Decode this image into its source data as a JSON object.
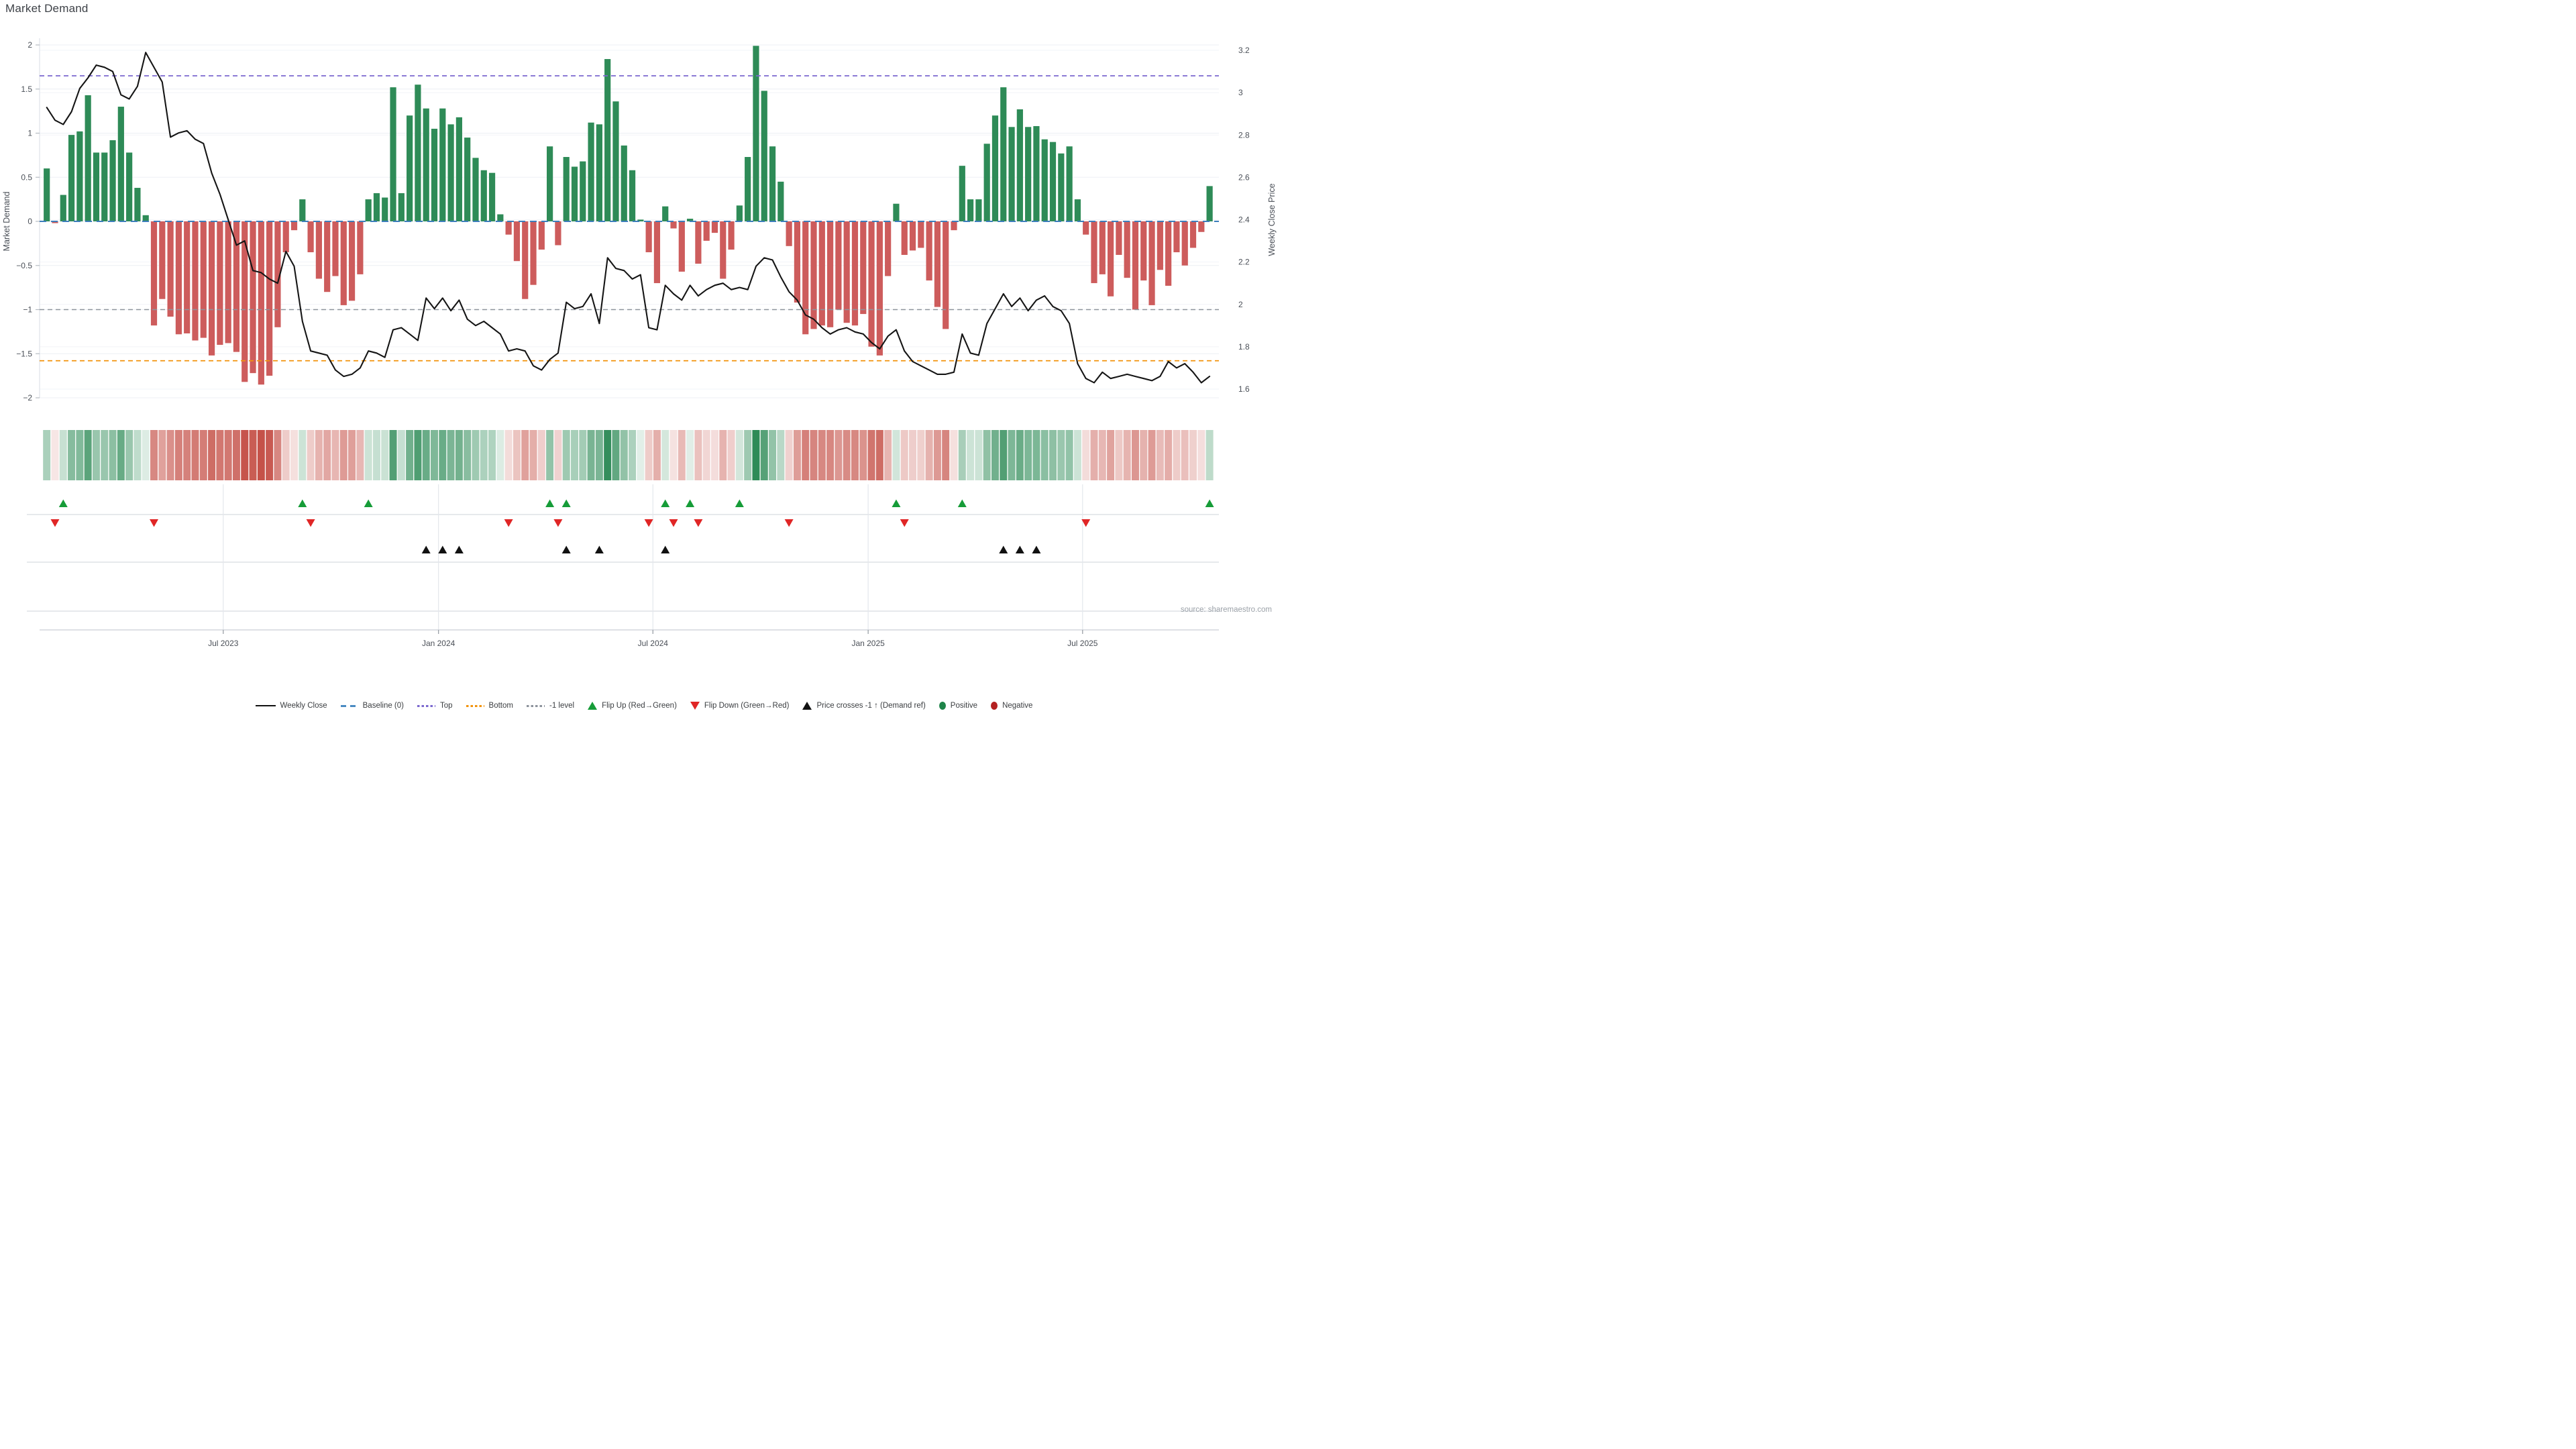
{
  "title": "Market Demand",
  "source": "source: sharemaestro.com",
  "axes": {
    "left": {
      "title": "Market Demand",
      "ticks": [
        2,
        1.5,
        1,
        0.5,
        0,
        -0.5,
        -1,
        -1.5,
        -2
      ],
      "range": [
        -2,
        2
      ]
    },
    "right": {
      "title": "Weekly Close Price",
      "ticks": [
        3.2,
        3,
        2.8,
        2.6,
        2.4,
        2.2,
        2,
        1.8,
        1.6
      ],
      "range": [
        1.6,
        3.2
      ]
    },
    "x": {
      "tick_labels": [
        "Jul 2023",
        "Jan 2024",
        "Jul 2024",
        "Jan 2025",
        "Jul 2025"
      ],
      "tick_weeks": [
        21.4,
        47.5,
        73.5,
        99.6,
        125.6
      ]
    }
  },
  "chart_data": {
    "type": "combo",
    "title": "Market Demand",
    "x_unit": "week_index",
    "n_weeks": 142,
    "ylim_left": [
      -2,
      2
    ],
    "ylim_right": [
      1.6,
      3.2
    ],
    "grid": true,
    "legend_position": "bottom",
    "reference_levels": {
      "baseline": 0,
      "top": 1.65,
      "bottom": -1.58,
      "minus_one": -1
    },
    "series": [
      {
        "name": "Market Demand",
        "type": "bar",
        "axis": "left",
        "values": [
          0.6,
          -0.02,
          0.3,
          0.98,
          1.02,
          1.43,
          0.78,
          0.78,
          0.92,
          1.3,
          0.78,
          0.38,
          0.07,
          -1.18,
          -0.88,
          -1.08,
          -1.28,
          -1.27,
          -1.35,
          -1.32,
          -1.52,
          -1.4,
          -1.38,
          -1.48,
          -1.82,
          -1.72,
          -1.85,
          -1.75,
          -1.2,
          -0.35,
          -0.1,
          0.25,
          -0.35,
          -0.65,
          -0.8,
          -0.62,
          -0.95,
          -0.9,
          -0.6,
          0.25,
          0.32,
          0.27,
          1.52,
          0.32,
          1.2,
          1.55,
          1.28,
          1.05,
          1.28,
          1.1,
          1.18,
          0.95,
          0.72,
          0.58,
          0.55,
          0.08,
          -0.15,
          -0.45,
          -0.88,
          -0.72,
          -0.32,
          0.85,
          -0.27,
          0.73,
          0.62,
          0.68,
          1.12,
          1.1,
          1.84,
          1.36,
          0.86,
          0.58,
          0.02,
          -0.35,
          -0.7,
          0.17,
          -0.08,
          -0.57,
          0.03,
          -0.48,
          -0.22,
          -0.13,
          -0.65,
          -0.32,
          0.18,
          0.73,
          1.99,
          1.48,
          0.85,
          0.45,
          -0.28,
          -0.92,
          -1.28,
          -1.22,
          -1.18,
          -1.2,
          -1.0,
          -1.15,
          -1.18,
          -1.05,
          -1.42,
          -1.52,
          -0.62,
          0.2,
          -0.38,
          -0.33,
          -0.3,
          -0.67,
          -0.97,
          -1.22,
          -0.1,
          0.63,
          0.25,
          0.25,
          0.88,
          1.2,
          1.52,
          1.07,
          1.27,
          1.07,
          1.08,
          0.93,
          0.9,
          0.77,
          0.85,
          0.25,
          -0.15,
          -0.7,
          -0.6,
          -0.85,
          -0.38,
          -0.64,
          -1.0,
          -0.67,
          -0.95,
          -0.55,
          -0.73,
          -0.35,
          -0.5,
          -0.3,
          -0.12,
          0.4
        ]
      },
      {
        "name": "Weekly Close",
        "type": "line",
        "axis": "right",
        "values": [
          2.93,
          2.87,
          2.85,
          2.91,
          3.02,
          3.07,
          3.13,
          3.12,
          3.1,
          2.99,
          2.97,
          3.03,
          3.19,
          3.12,
          3.05,
          2.79,
          2.81,
          2.82,
          2.78,
          2.76,
          2.62,
          2.52,
          2.4,
          2.28,
          2.3,
          2.16,
          2.15,
          2.12,
          2.1,
          2.25,
          2.18,
          1.92,
          1.78,
          1.77,
          1.76,
          1.69,
          1.66,
          1.67,
          1.7,
          1.78,
          1.77,
          1.75,
          1.88,
          1.89,
          1.86,
          1.83,
          2.03,
          1.98,
          2.03,
          1.97,
          2.02,
          1.93,
          1.9,
          1.92,
          1.89,
          1.86,
          1.78,
          1.79,
          1.78,
          1.71,
          1.69,
          1.74,
          1.77,
          2.01,
          1.98,
          1.99,
          2.05,
          1.91,
          2.22,
          2.17,
          2.16,
          2.12,
          2.14,
          1.89,
          1.88,
          2.09,
          2.05,
          2.02,
          2.09,
          2.04,
          2.07,
          2.09,
          2.1,
          2.07,
          2.08,
          2.07,
          2.18,
          2.22,
          2.21,
          2.13,
          2.06,
          2.02,
          1.95,
          1.93,
          1.89,
          1.86,
          1.88,
          1.89,
          1.87,
          1.86,
          1.82,
          1.79,
          1.85,
          1.88,
          1.78,
          1.73,
          1.71,
          1.69,
          1.67,
          1.67,
          1.68,
          1.86,
          1.77,
          1.76,
          1.91,
          1.98,
          2.05,
          1.99,
          2.03,
          1.97,
          2.02,
          2.04,
          1.99,
          1.97,
          1.91,
          1.72,
          1.65,
          1.63,
          1.68,
          1.65,
          1.66,
          1.67,
          1.66,
          1.65,
          1.64,
          1.66,
          1.73,
          1.7,
          1.72,
          1.68,
          1.63,
          1.66
        ]
      }
    ],
    "markers": {
      "flip_up_weeks": [
        2,
        31,
        39,
        61,
        63,
        75,
        78,
        84,
        103,
        111,
        141
      ],
      "flip_down_weeks": [
        1,
        13,
        32,
        56,
        62,
        73,
        76,
        79,
        90,
        104,
        126
      ],
      "price_cross_weeks": [
        46,
        48,
        50,
        63,
        67,
        75,
        116,
        118,
        120
      ]
    },
    "heatmap_strip": {
      "source_series": "Market Demand",
      "positive_color": "#2e8b57",
      "negative_color": "#c44e45",
      "intensity": "abs(value)/1.9"
    }
  },
  "legend": {
    "items": [
      {
        "label": "Weekly Close",
        "glyph": "line",
        "color": "#111111"
      },
      {
        "label": "Baseline (0)",
        "glyph": "dashes",
        "color": "#4a8bc2"
      },
      {
        "label": "Top",
        "glyph": "dots",
        "color": "#7b68cf"
      },
      {
        "label": "Bottom",
        "glyph": "dots",
        "color": "#f2930d"
      },
      {
        "label": "-1 level",
        "glyph": "dots",
        "color": "#8d939c"
      },
      {
        "label": "Flip Up (Red→Green)",
        "glyph": "triangle-up",
        "color": "#169c38"
      },
      {
        "label": "Flip Down (Green→Red)",
        "glyph": "triangle-down",
        "color": "#e02626"
      },
      {
        "label": "Price crosses -1 ↑ (Demand ref)",
        "glyph": "triangle-up",
        "color": "#111111"
      },
      {
        "label": "Positive",
        "glyph": "dot",
        "color": "#1e8449"
      },
      {
        "label": "Negative",
        "glyph": "dot",
        "color": "#b42121"
      }
    ]
  },
  "colors": {
    "bar_positive": "#2e8b57",
    "bar_negative": "#cd5c5c",
    "price_line": "#151515",
    "baseline_dash": "#3d7ebc",
    "top_dash": "#7b68cf",
    "bottom_dash": "#f2930d",
    "minus_one_dash": "#8d939c",
    "grid": "#eceff4",
    "axis_text": "#4a4f57",
    "panel_line": "#d8dce1"
  }
}
